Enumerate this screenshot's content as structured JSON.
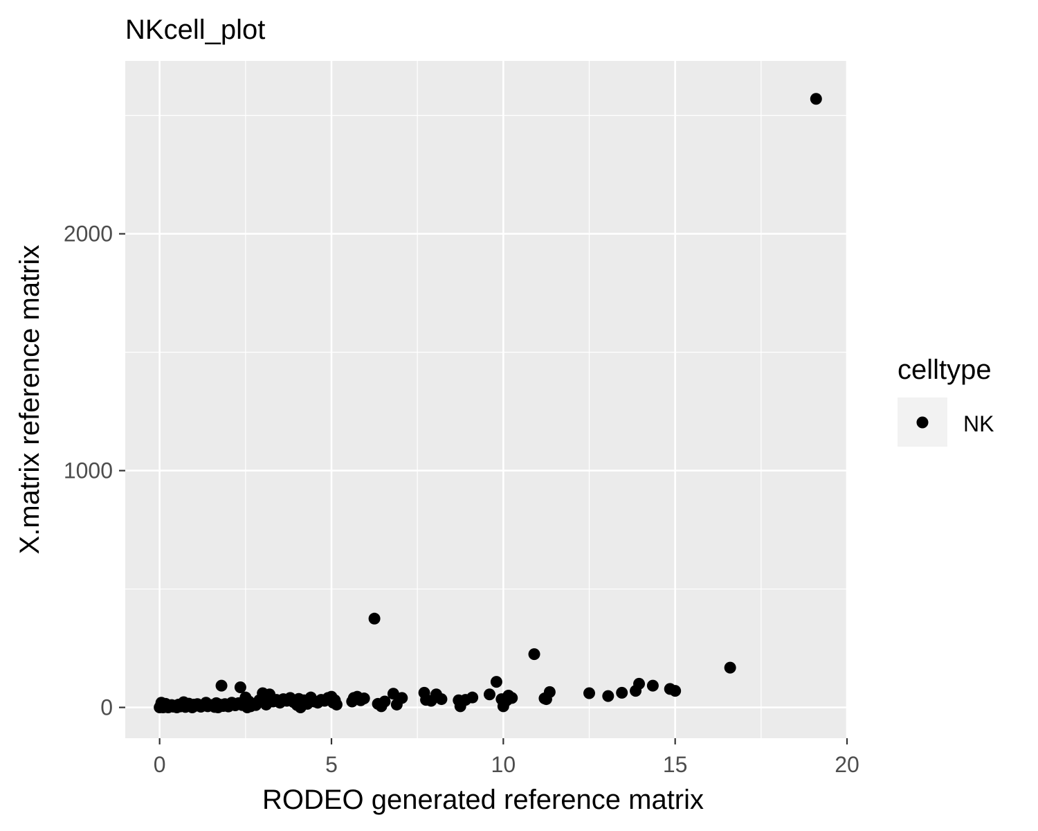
{
  "chart_data": {
    "type": "scatter",
    "title": "NKcell_plot",
    "xlabel": "RODEO generated reference matrix",
    "ylabel": "X.matrix reference matrix",
    "xlim": [
      -1,
      20
    ],
    "ylim": [
      -130,
      2730
    ],
    "x_ticks": [
      0,
      5,
      10,
      15,
      20
    ],
    "y_ticks": [
      0,
      1000,
      2000
    ],
    "x_tick_labels": [
      "0",
      "5",
      "10",
      "15",
      "20"
    ],
    "y_tick_labels": [
      "0",
      "1000",
      "2000"
    ],
    "grid": true,
    "panel_color": "#ebebeb",
    "point_color": "#000000",
    "legend": {
      "title": "celltype",
      "position": "right",
      "entries": [
        "NK"
      ]
    },
    "series": [
      {
        "name": "NK",
        "points": [
          [
            0.0,
            0
          ],
          [
            0.02,
            5
          ],
          [
            0.05,
            20
          ],
          [
            0.08,
            10
          ],
          [
            0.1,
            0
          ],
          [
            0.12,
            3
          ],
          [
            0.15,
            8
          ],
          [
            0.18,
            15
          ],
          [
            0.2,
            2
          ],
          [
            0.22,
            5
          ],
          [
            0.25,
            0
          ],
          [
            0.3,
            6
          ],
          [
            0.35,
            10
          ],
          [
            0.4,
            3
          ],
          [
            0.45,
            7
          ],
          [
            0.5,
            0
          ],
          [
            0.55,
            12
          ],
          [
            0.6,
            4
          ],
          [
            0.65,
            9
          ],
          [
            0.7,
            22
          ],
          [
            0.75,
            2
          ],
          [
            0.8,
            10
          ],
          [
            0.85,
            16
          ],
          [
            0.9,
            5
          ],
          [
            0.95,
            0
          ],
          [
            1.0,
            12
          ],
          [
            1.05,
            7
          ],
          [
            1.1,
            14
          ],
          [
            1.2,
            3
          ],
          [
            1.3,
            8
          ],
          [
            1.35,
            20
          ],
          [
            1.4,
            5
          ],
          [
            1.5,
            10
          ],
          [
            1.6,
            2
          ],
          [
            1.65,
            18
          ],
          [
            1.7,
            0
          ],
          [
            1.75,
            12
          ],
          [
            1.8,
            92
          ],
          [
            1.85,
            6
          ],
          [
            1.9,
            14
          ],
          [
            2.0,
            4
          ],
          [
            2.1,
            20
          ],
          [
            2.2,
            9
          ],
          [
            2.3,
            18
          ],
          [
            2.35,
            85
          ],
          [
            2.4,
            10
          ],
          [
            2.5,
            42
          ],
          [
            2.55,
            0
          ],
          [
            2.6,
            25
          ],
          [
            2.65,
            5
          ],
          [
            2.7,
            15
          ],
          [
            2.8,
            10
          ],
          [
            2.9,
            30
          ],
          [
            3.0,
            60
          ],
          [
            3.05,
            22
          ],
          [
            3.1,
            12
          ],
          [
            3.15,
            40
          ],
          [
            3.2,
            55
          ],
          [
            3.3,
            25
          ],
          [
            3.4,
            32
          ],
          [
            3.5,
            20
          ],
          [
            3.6,
            35
          ],
          [
            3.7,
            28
          ],
          [
            3.8,
            40
          ],
          [
            3.9,
            22
          ],
          [
            4.0,
            10
          ],
          [
            4.05,
            36
          ],
          [
            4.1,
            0
          ],
          [
            4.2,
            30
          ],
          [
            4.3,
            15
          ],
          [
            4.4,
            42
          ],
          [
            4.5,
            25
          ],
          [
            4.6,
            20
          ],
          [
            4.7,
            32
          ],
          [
            4.8,
            28
          ],
          [
            4.9,
            40
          ],
          [
            5.0,
            45
          ],
          [
            5.05,
            20
          ],
          [
            5.1,
            30
          ],
          [
            5.15,
            12
          ],
          [
            5.6,
            25
          ],
          [
            5.65,
            40
          ],
          [
            5.75,
            45
          ],
          [
            5.85,
            30
          ],
          [
            5.95,
            38
          ],
          [
            6.25,
            375
          ],
          [
            6.35,
            15
          ],
          [
            6.45,
            5
          ],
          [
            6.55,
            25
          ],
          [
            6.8,
            58
          ],
          [
            6.9,
            12
          ],
          [
            7.05,
            40
          ],
          [
            7.7,
            62
          ],
          [
            7.75,
            32
          ],
          [
            7.9,
            28
          ],
          [
            8.05,
            55
          ],
          [
            8.2,
            35
          ],
          [
            8.7,
            30
          ],
          [
            8.75,
            5
          ],
          [
            8.9,
            32
          ],
          [
            9.1,
            42
          ],
          [
            9.6,
            55
          ],
          [
            9.8,
            108
          ],
          [
            9.95,
            35
          ],
          [
            10.0,
            5
          ],
          [
            10.1,
            30
          ],
          [
            10.15,
            50
          ],
          [
            10.25,
            40
          ],
          [
            10.9,
            225
          ],
          [
            11.2,
            38
          ],
          [
            11.25,
            35
          ],
          [
            11.35,
            65
          ],
          [
            12.5,
            60
          ],
          [
            13.05,
            48
          ],
          [
            13.45,
            62
          ],
          [
            13.85,
            70
          ],
          [
            13.95,
            100
          ],
          [
            14.35,
            92
          ],
          [
            14.85,
            78
          ],
          [
            15.0,
            70
          ],
          [
            16.6,
            168
          ],
          [
            19.1,
            2570
          ]
        ]
      }
    ]
  }
}
